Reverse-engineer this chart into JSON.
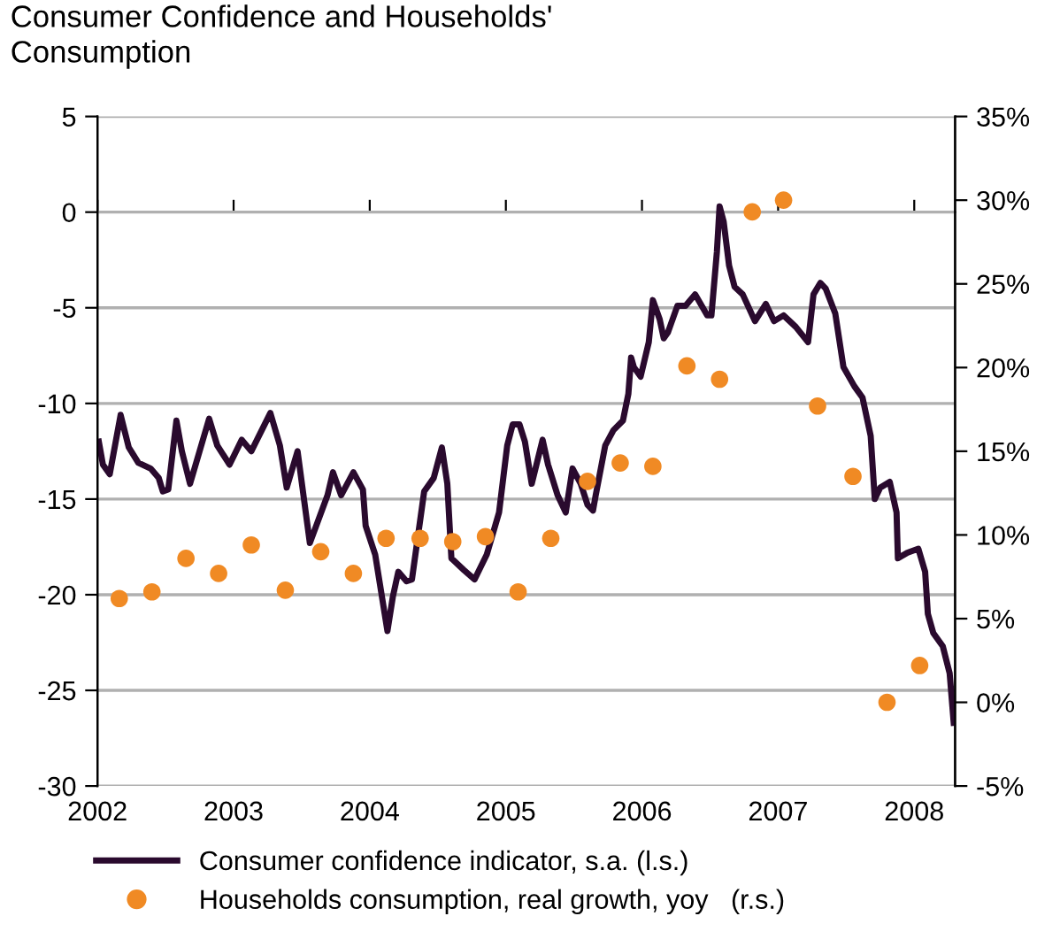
{
  "chart_data": {
    "type": "line",
    "title": "Consumer Confidence and Households'\nConsumption",
    "xlim": [
      2002,
      2008.3
    ],
    "xticks": [
      2002,
      2003,
      2004,
      2005,
      2006,
      2007,
      2008
    ],
    "ylim": [
      -30,
      5
    ],
    "yticks": [
      -30,
      -25,
      -20,
      -15,
      -10,
      -5,
      0,
      5
    ],
    "y2lim": [
      -5,
      35
    ],
    "y2ticks": [
      {
        "value": -5,
        "label": "-5%"
      },
      {
        "value": 0,
        "label": "0%"
      },
      {
        "value": 5,
        "label": "5%"
      },
      {
        "value": 10,
        "label": "10%"
      },
      {
        "value": 15,
        "label": "15%"
      },
      {
        "value": 20,
        "label": "20%"
      },
      {
        "value": 25,
        "label": "25%"
      },
      {
        "value": 30,
        "label": "30%"
      },
      {
        "value": 35,
        "label": "35%"
      }
    ],
    "grid": "y",
    "legend": "bottom",
    "series": [
      {
        "name": "Consumer confidence indicator, s.a. (l.s.)",
        "color": "#2a0a2e",
        "x": [
          2002.01,
          2002.04,
          2002.09,
          2002.17,
          2002.23,
          2002.3,
          2002.39,
          2002.45,
          2002.48,
          2002.52,
          2002.58,
          2002.62,
          2002.68,
          2002.82,
          2002.88,
          2002.97,
          2003.06,
          2003.13,
          2003.27,
          2003.34,
          2003.39,
          2003.47,
          2003.56,
          2003.69,
          2003.73,
          2003.79,
          2003.88,
          2003.95,
          2003.97,
          2004.04,
          2004.13,
          2004.17,
          2004.21,
          2004.27,
          2004.31,
          2004.4,
          2004.47,
          2004.53,
          2004.57,
          2004.6,
          2004.69,
          2004.77,
          2004.86,
          2004.95,
          2005.01,
          2005.05,
          2005.1,
          2005.14,
          2005.19,
          2005.27,
          2005.31,
          2005.38,
          2005.44,
          2005.49,
          2005.55,
          2005.6,
          2005.64,
          2005.66,
          2005.73,
          2005.79,
          2005.86,
          2005.9,
          2005.92,
          2005.94,
          2005.99,
          2006.05,
          2006.08,
          2006.13,
          2006.16,
          2006.19,
          2006.26,
          2006.32,
          2006.39,
          2006.48,
          2006.51,
          2006.55,
          2006.57,
          2006.6,
          2006.64,
          2006.68,
          2006.74,
          2006.83,
          2006.91,
          2006.97,
          2007.04,
          2007.13,
          2007.22,
          2007.26,
          2007.31,
          2007.35,
          2007.42,
          2007.48,
          2007.56,
          2007.62,
          2007.68,
          2007.71,
          2007.75,
          2007.82,
          2007.87,
          2007.88,
          2007.95,
          2008.03,
          2008.08,
          2008.1,
          2008.14,
          2008.21,
          2008.26,
          2008.29
        ],
        "values": [
          -12.0,
          -13.2,
          -13.7,
          -10.6,
          -12.3,
          -13.1,
          -13.4,
          -13.9,
          -14.6,
          -14.5,
          -10.9,
          -12.5,
          -14.2,
          -10.8,
          -12.2,
          -13.2,
          -11.9,
          -12.5,
          -10.5,
          -12.2,
          -14.4,
          -12.5,
          -17.3,
          -14.8,
          -13.6,
          -14.8,
          -13.6,
          -14.5,
          -16.4,
          -17.9,
          -21.9,
          -20.1,
          -18.8,
          -19.3,
          -19.2,
          -14.6,
          -13.9,
          -12.3,
          -14.2,
          -18.1,
          -18.7,
          -19.2,
          -17.9,
          -15.7,
          -12.2,
          -11.1,
          -11.1,
          -12.0,
          -14.2,
          -11.9,
          -13.2,
          -14.8,
          -15.7,
          -13.4,
          -14.2,
          -15.3,
          -15.6,
          -14.8,
          -12.2,
          -11.4,
          -10.9,
          -9.5,
          -7.6,
          -8.1,
          -8.6,
          -6.8,
          -4.6,
          -5.6,
          -6.6,
          -6.3,
          -4.9,
          -4.9,
          -4.3,
          -5.4,
          -5.4,
          -2.1,
          0.3,
          -0.5,
          -2.8,
          -3.9,
          -4.3,
          -5.7,
          -4.8,
          -5.7,
          -5.4,
          -6.0,
          -6.8,
          -4.3,
          -3.7,
          -4.0,
          -5.3,
          -8.1,
          -9.1,
          -9.7,
          -11.7,
          -15.0,
          -14.4,
          -14.1,
          -15.7,
          -18.1,
          -17.8,
          -17.6,
          -18.8,
          -21.0,
          -22.0,
          -22.7,
          -24.1,
          -26.7
        ]
      },
      {
        "name": "Households consumption, real growth, yoy   (r.s.)",
        "type": "scatter",
        "axis": "y2",
        "color": "#f08a24",
        "x": [
          2002.16,
          2002.4,
          2002.65,
          2002.89,
          2003.13,
          2003.38,
          2003.64,
          2003.88,
          2004.12,
          2004.37,
          2004.61,
          2004.85,
          2005.09,
          2005.33,
          2005.6,
          2005.84,
          2006.08,
          2006.33,
          2006.57,
          2006.81,
          2007.04,
          2007.29,
          2007.55,
          2007.8,
          2008.04
        ],
        "values": [
          6.2,
          6.6,
          8.6,
          7.7,
          9.4,
          6.7,
          9.0,
          7.7,
          9.8,
          9.8,
          9.6,
          9.9,
          6.6,
          9.8,
          13.2,
          14.3,
          14.1,
          20.1,
          19.3,
          29.3,
          30.0,
          17.7,
          13.5,
          0.0,
          2.2
        ]
      }
    ]
  }
}
